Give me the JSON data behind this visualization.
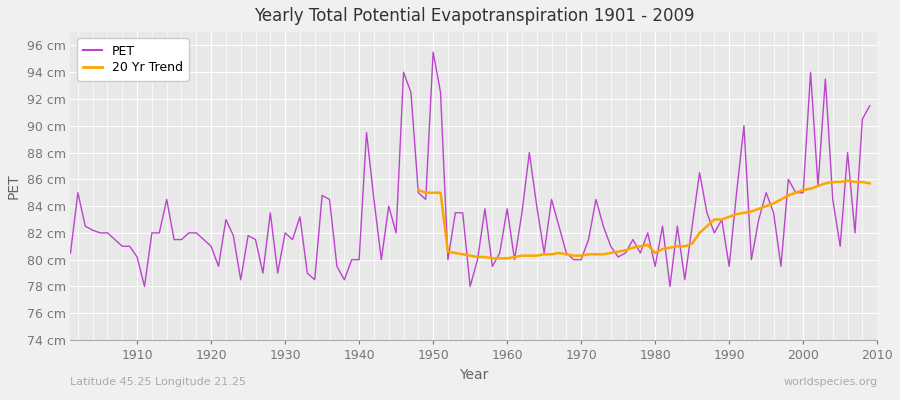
{
  "title": "Yearly Total Potential Evapotranspiration 1901 - 2009",
  "xlabel": "Year",
  "ylabel": "PET",
  "lat_lon_label": "Latitude 45.25 Longitude 21.25",
  "watermark": "worldspecies.org",
  "pet_color": "#BB44CC",
  "trend_color": "#FFA500",
  "fig_bg_color": "#F0F0F0",
  "plot_bg_color": "#E8E8E8",
  "ylim": [
    74,
    97
  ],
  "yticks": [
    74,
    76,
    78,
    80,
    82,
    84,
    86,
    88,
    90,
    92,
    94,
    96
  ],
  "years": [
    1901,
    1902,
    1903,
    1904,
    1905,
    1906,
    1907,
    1908,
    1909,
    1910,
    1911,
    1912,
    1913,
    1914,
    1915,
    1916,
    1917,
    1918,
    1919,
    1920,
    1921,
    1922,
    1923,
    1924,
    1925,
    1926,
    1927,
    1928,
    1929,
    1930,
    1931,
    1932,
    1933,
    1934,
    1935,
    1936,
    1937,
    1938,
    1939,
    1940,
    1941,
    1942,
    1943,
    1944,
    1945,
    1946,
    1947,
    1948,
    1949,
    1950,
    1951,
    1952,
    1953,
    1954,
    1955,
    1956,
    1957,
    1958,
    1959,
    1960,
    1961,
    1962,
    1963,
    1964,
    1965,
    1966,
    1967,
    1968,
    1969,
    1970,
    1971,
    1972,
    1973,
    1974,
    1975,
    1976,
    1977,
    1978,
    1979,
    1980,
    1981,
    1982,
    1983,
    1984,
    1985,
    1986,
    1987,
    1988,
    1989,
    1990,
    1991,
    1992,
    1993,
    1994,
    1995,
    1996,
    1997,
    1998,
    1999,
    2000,
    2001,
    2002,
    2003,
    2004,
    2005,
    2006,
    2007,
    2008,
    2009
  ],
  "pet_values": [
    80.5,
    85.0,
    82.5,
    82.2,
    82.0,
    82.0,
    81.5,
    81.0,
    81.0,
    80.2,
    78.0,
    82.0,
    82.0,
    84.5,
    81.5,
    81.5,
    82.0,
    82.0,
    81.5,
    81.0,
    79.5,
    83.0,
    81.8,
    78.5,
    81.8,
    81.5,
    79.0,
    83.5,
    79.0,
    82.0,
    81.5,
    83.2,
    79.0,
    78.5,
    84.8,
    84.5,
    79.5,
    78.5,
    80.0,
    80.0,
    89.5,
    84.5,
    80.0,
    84.0,
    82.0,
    94.0,
    92.5,
    85.0,
    84.5,
    95.5,
    92.5,
    80.0,
    83.5,
    83.5,
    78.0,
    80.0,
    83.8,
    79.5,
    80.5,
    83.8,
    80.0,
    83.5,
    88.0,
    84.0,
    80.5,
    84.5,
    82.5,
    80.5,
    80.0,
    80.0,
    81.5,
    84.5,
    82.5,
    81.0,
    80.2,
    80.5,
    81.5,
    80.5,
    82.0,
    79.5,
    82.5,
    78.0,
    82.5,
    78.5,
    82.5,
    86.5,
    83.5,
    82.0,
    83.0,
    79.5,
    85.0,
    90.0,
    80.0,
    83.0,
    85.0,
    83.5,
    79.5,
    86.0,
    85.0,
    85.0,
    94.0,
    85.5,
    93.5,
    84.5,
    81.0,
    88.0,
    82.0,
    90.5,
    91.5
  ],
  "trend_years": [
    1948,
    1949,
    1950,
    1951,
    1952,
    1953,
    1954,
    1955,
    1956,
    1957,
    1958,
    1959,
    1960,
    1961,
    1962,
    1963,
    1964,
    1965,
    1966,
    1967,
    1968,
    1969,
    1970,
    1971,
    1972,
    1973,
    1974,
    1975,
    1976,
    1977,
    1978,
    1979,
    1980,
    1981,
    1982,
    1983,
    1984,
    1985,
    1986,
    1987,
    1988,
    1989,
    1990,
    1991,
    1992,
    1993,
    1994,
    1995,
    1996,
    1997,
    1998,
    1999,
    2000,
    2001,
    2002,
    2003,
    2004,
    2005,
    2006,
    2007,
    2008,
    2009
  ],
  "trend_values": [
    85.2,
    85.0,
    85.0,
    85.0,
    80.6,
    80.5,
    80.4,
    80.3,
    80.2,
    80.2,
    80.1,
    80.1,
    80.1,
    80.2,
    80.3,
    80.3,
    80.3,
    80.4,
    80.4,
    80.5,
    80.4,
    80.3,
    80.3,
    80.4,
    80.4,
    80.4,
    80.5,
    80.6,
    80.7,
    80.9,
    81.0,
    81.1,
    80.5,
    80.8,
    80.9,
    81.0,
    81.0,
    81.2,
    82.0,
    82.5,
    83.0,
    83.0,
    83.2,
    83.4,
    83.5,
    83.6,
    83.8,
    84.0,
    84.2,
    84.5,
    84.8,
    85.0,
    85.2,
    85.3,
    85.5,
    85.7,
    85.8,
    85.8,
    85.9,
    85.8,
    85.8,
    85.7
  ]
}
